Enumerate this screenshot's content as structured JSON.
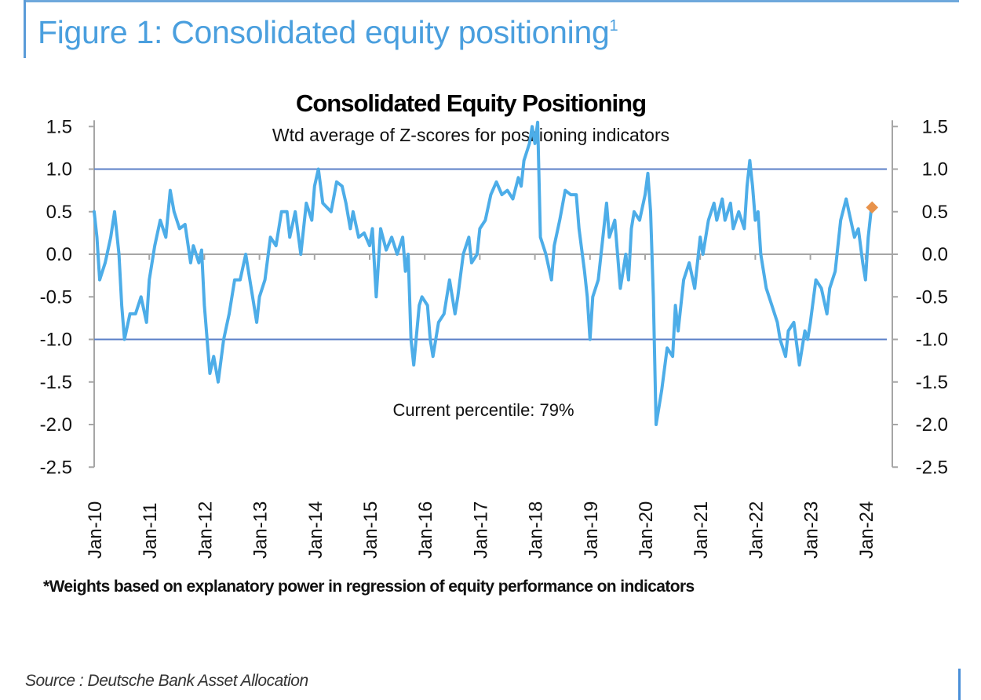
{
  "figure": {
    "title": "Figure 1: Consolidated equity positioning",
    "title_superscript": "1",
    "footnote": "*Weights based on explanatory power in regression of equity performance on indicators",
    "source": "Source : Deutsche Bank Asset Allocation",
    "accent_color": "#4a9fde"
  },
  "chart_data": {
    "type": "line",
    "title": "Consolidated Equity Positioning",
    "subtitle": "Wtd average of Z-scores for positioning indicators",
    "annotation": "Current percentile: 79%",
    "xlabel": "",
    "ylabel": "",
    "ylim": [
      -2.5,
      1.5
    ],
    "xlim": [
      2010.0,
      2024.3
    ],
    "yticks": [
      "1.5",
      "1.0",
      "0.5",
      "0.0",
      "-0.5",
      "-1.0",
      "-1.5",
      "-2.0",
      "-2.5"
    ],
    "ytick_values": [
      1.5,
      1.0,
      0.5,
      0.0,
      -0.5,
      -1.0,
      -1.5,
      -2.0,
      -2.5
    ],
    "xtick_labels": [
      "Jan-10",
      "Jan-11",
      "Jan-12",
      "Jan-13",
      "Jan-14",
      "Jan-15",
      "Jan-16",
      "Jan-17",
      "Jan-18",
      "Jan-19",
      "Jan-20",
      "Jan-21",
      "Jan-22",
      "Jan-23",
      "Jan-24"
    ],
    "xtick_values": [
      2010,
      2011,
      2012,
      2013,
      2014,
      2015,
      2016,
      2017,
      2018,
      2019,
      2020,
      2021,
      2022,
      2023,
      2024
    ],
    "reference_lines": [
      1.0,
      -1.0
    ],
    "grid": false,
    "legend": "none",
    "colors": {
      "series": "#4dade8",
      "reference": "#5b7fc7",
      "zero_axis": "#a6a6a6",
      "current_marker": "#e8924a"
    },
    "series": [
      {
        "name": "Consolidated equity positioning (Z-score)",
        "x": [
          2010.0,
          2010.05,
          2010.1,
          2010.2,
          2010.3,
          2010.37,
          2010.45,
          2010.5,
          2010.55,
          2010.65,
          2010.75,
          2010.85,
          2010.95,
          2011.0,
          2011.1,
          2011.2,
          2011.3,
          2011.38,
          2011.45,
          2011.55,
          2011.65,
          2011.75,
          2011.8,
          2011.9,
          2011.95,
          2012.0,
          2012.1,
          2012.17,
          2012.25,
          2012.35,
          2012.45,
          2012.55,
          2012.65,
          2012.75,
          2012.85,
          2012.95,
          2013.0,
          2013.1,
          2013.2,
          2013.3,
          2013.4,
          2013.5,
          2013.55,
          2013.65,
          2013.75,
          2013.85,
          2013.95,
          2014.0,
          2014.07,
          2014.15,
          2014.3,
          2014.4,
          2014.5,
          2014.57,
          2014.65,
          2014.7,
          2014.8,
          2014.9,
          2015.0,
          2015.05,
          2015.12,
          2015.2,
          2015.3,
          2015.4,
          2015.5,
          2015.6,
          2015.65,
          2015.7,
          2015.75,
          2015.8,
          2015.9,
          2015.95,
          2016.05,
          2016.1,
          2016.15,
          2016.25,
          2016.35,
          2016.45,
          2016.55,
          2016.6,
          2016.7,
          2016.8,
          2016.85,
          2016.95,
          2017.0,
          2017.1,
          2017.2,
          2017.3,
          2017.4,
          2017.5,
          2017.6,
          2017.7,
          2017.75,
          2017.8,
          2017.9,
          2017.95,
          2018.0,
          2018.05,
          2018.1,
          2018.2,
          2018.3,
          2018.35,
          2018.45,
          2018.55,
          2018.65,
          2018.75,
          2018.8,
          2018.9,
          2018.95,
          2019.0,
          2019.05,
          2019.15,
          2019.25,
          2019.3,
          2019.35,
          2019.45,
          2019.5,
          2019.55,
          2019.65,
          2019.7,
          2019.75,
          2019.8,
          2019.9,
          2020.0,
          2020.05,
          2020.1,
          2020.15,
          2020.2,
          2020.3,
          2020.4,
          2020.5,
          2020.55,
          2020.6,
          2020.7,
          2020.8,
          2020.9,
          2021.0,
          2021.05,
          2021.15,
          2021.25,
          2021.3,
          2021.4,
          2021.45,
          2021.55,
          2021.6,
          2021.7,
          2021.8,
          2021.85,
          2021.9,
          2021.95,
          2022.0,
          2022.05,
          2022.1,
          2022.2,
          2022.3,
          2022.4,
          2022.45,
          2022.55,
          2022.6,
          2022.7,
          2022.8,
          2022.9,
          2022.95,
          2023.0,
          2023.1,
          2023.2,
          2023.3,
          2023.35,
          2023.45,
          2023.55,
          2023.65,
          2023.7,
          2023.8,
          2023.87,
          2023.95,
          2024.0,
          2024.05,
          2024.1
        ],
        "values": [
          0.5,
          0.2,
          -0.3,
          -0.1,
          0.2,
          0.5,
          0.0,
          -0.6,
          -1.0,
          -0.7,
          -0.7,
          -0.5,
          -0.8,
          -0.3,
          0.1,
          0.4,
          0.2,
          0.75,
          0.5,
          0.3,
          0.35,
          -0.1,
          0.1,
          -0.1,
          0.05,
          -0.6,
          -1.4,
          -1.2,
          -1.5,
          -1.0,
          -0.7,
          -0.3,
          -0.3,
          0.0,
          -0.4,
          -0.8,
          -0.5,
          -0.3,
          0.2,
          0.1,
          0.5,
          0.5,
          0.2,
          0.5,
          0.0,
          0.6,
          0.4,
          0.8,
          1.0,
          0.6,
          0.5,
          0.85,
          0.8,
          0.6,
          0.3,
          0.5,
          0.2,
          0.25,
          0.1,
          0.3,
          -0.5,
          0.3,
          0.05,
          0.2,
          0.0,
          0.2,
          -0.2,
          0.0,
          -1.0,
          -1.3,
          -0.6,
          -0.5,
          -0.6,
          -1.0,
          -1.2,
          -0.8,
          -0.7,
          -0.3,
          -0.7,
          -0.5,
          0.0,
          0.2,
          -0.1,
          0.0,
          0.3,
          0.4,
          0.7,
          0.85,
          0.7,
          0.75,
          0.65,
          0.9,
          0.8,
          1.1,
          1.3,
          1.5,
          1.3,
          1.55,
          0.2,
          0.0,
          -0.3,
          0.1,
          0.4,
          0.75,
          0.7,
          0.7,
          0.3,
          -0.2,
          -0.5,
          -1.0,
          -0.5,
          -0.3,
          0.3,
          0.6,
          0.2,
          0.4,
          0.0,
          -0.4,
          0.0,
          -0.3,
          0.3,
          0.5,
          0.4,
          0.7,
          0.95,
          0.5,
          -0.5,
          -2.0,
          -1.6,
          -1.1,
          -1.2,
          -0.6,
          -0.9,
          -0.3,
          -0.1,
          -0.4,
          0.2,
          0.0,
          0.4,
          0.6,
          0.4,
          0.65,
          0.4,
          0.6,
          0.3,
          0.5,
          0.3,
          0.8,
          1.1,
          0.8,
          0.4,
          0.5,
          0.0,
          -0.4,
          -0.6,
          -0.8,
          -1.0,
          -1.2,
          -0.9,
          -0.8,
          -1.3,
          -0.9,
          -1.0,
          -0.8,
          -0.3,
          -0.4,
          -0.7,
          -0.4,
          -0.2,
          0.4,
          0.65,
          0.5,
          0.2,
          0.3,
          -0.1,
          -0.3,
          0.2,
          0.5
        ]
      }
    ],
    "current_point": {
      "x": 2024.12,
      "value": 0.55
    }
  }
}
